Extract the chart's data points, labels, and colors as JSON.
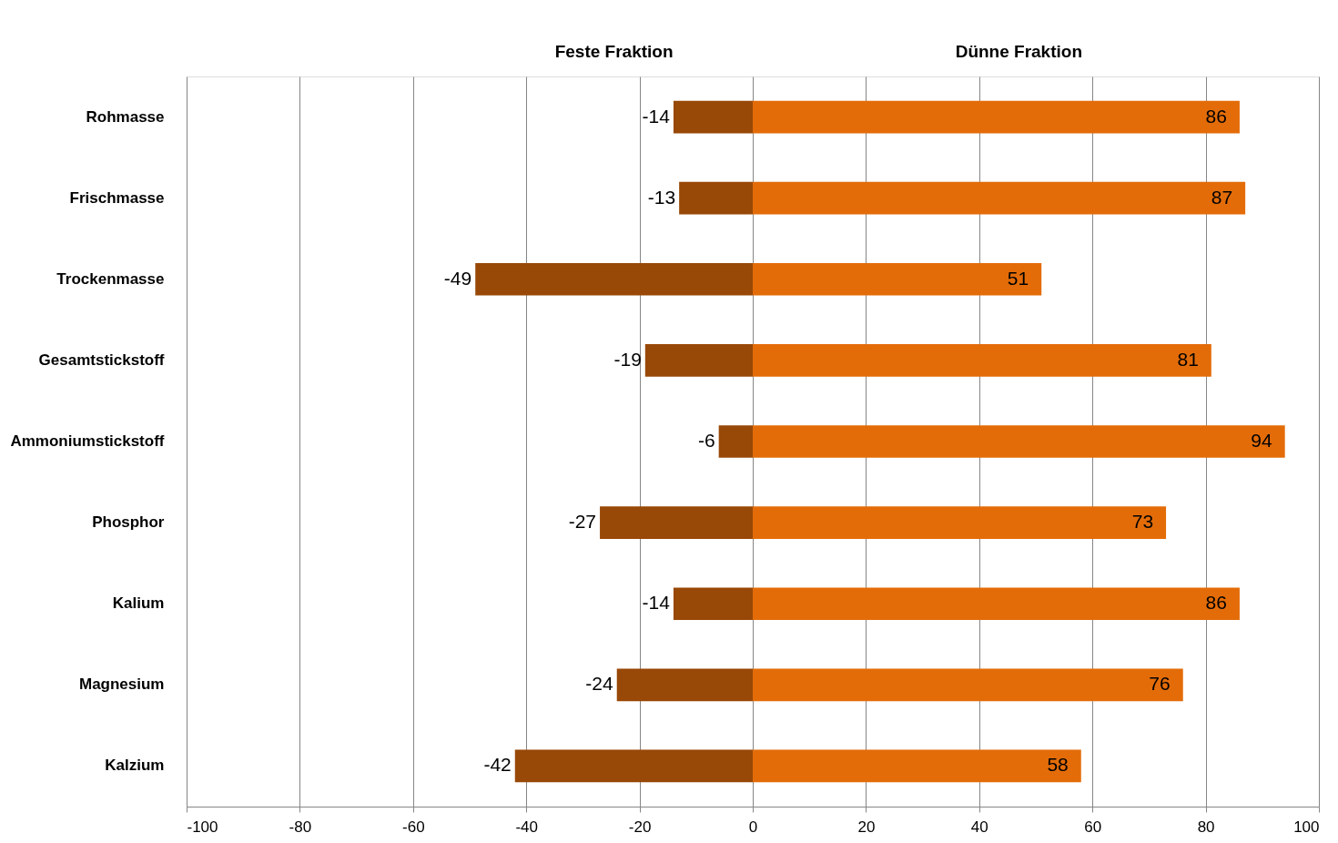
{
  "chart_data": {
    "type": "bar",
    "orientation": "horizontal",
    "categories": [
      "Rohmasse",
      "Frischmasse",
      "Trockenmasse",
      "Gesamtstickstoff",
      "Ammoniumstickstoff",
      "Phosphor",
      "Kalium",
      "Magnesium",
      "Kalzium"
    ],
    "series": [
      {
        "name": "Feste Fraktion",
        "color": "#984807",
        "values": [
          -14,
          -13,
          -49,
          -19,
          -6,
          -27,
          -14,
          -24,
          -42
        ]
      },
      {
        "name": "Dünne Fraktion",
        "color": "#e36c09",
        "values": [
          86,
          87,
          51,
          81,
          94,
          73,
          86,
          76,
          58
        ]
      }
    ],
    "stacked": true,
    "xlim": [
      -100,
      100
    ],
    "xticks": [
      -100,
      -80,
      -60,
      -40,
      -20,
      0,
      20,
      40,
      60,
      80,
      100
    ],
    "grid": "x",
    "data_labels": true
  }
}
